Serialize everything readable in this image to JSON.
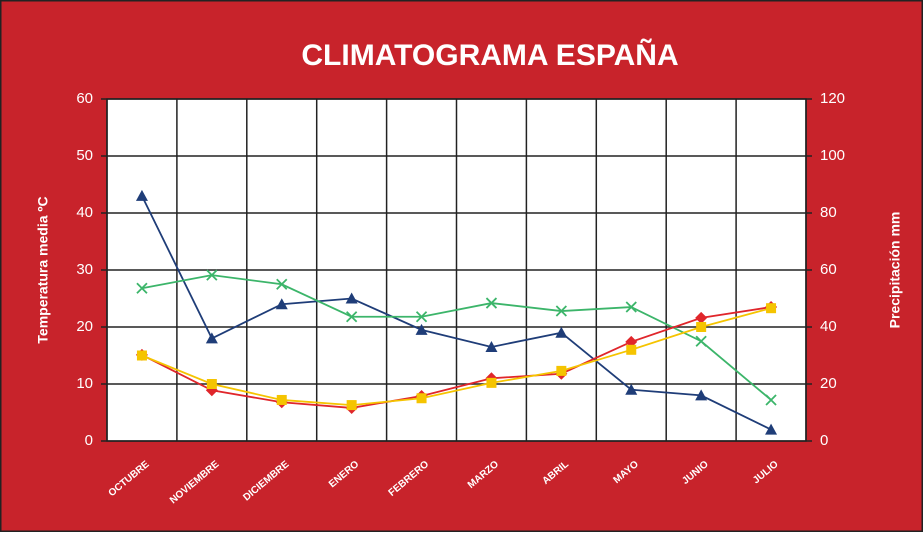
{
  "chart_data": {
    "type": "line",
    "title": "CLIMATOGRAMA ESPAÑA",
    "y_label": "Temperatura  media ºC",
    "y2_label": "Precipitación mm",
    "categories": [
      "OCTUBRE",
      "NOVIEMBRE",
      "DICIEMBRE",
      "ENERO",
      "FEBRERO",
      "MARZO",
      "ABRIL",
      "MAYO",
      "JUNIO",
      "JULIO"
    ],
    "ylim": [
      0,
      60
    ],
    "yticks": [
      0,
      10,
      20,
      30,
      40,
      50,
      60
    ],
    "y2lim": [
      0,
      120
    ],
    "y2ticks": [
      0,
      20,
      40,
      60,
      80,
      100,
      120
    ],
    "grid": true,
    "series": [
      {
        "color": "#1f3d78",
        "marker": "triangle",
        "axis": "y2",
        "values": [
          86,
          36,
          48,
          50,
          39,
          33,
          38,
          18,
          16,
          4
        ]
      },
      {
        "color": "#3cb56a",
        "marker": "x",
        "values": [
          26.8,
          29.1,
          27.5,
          21.8,
          21.8,
          24.2,
          22.8,
          23.5,
          17.5,
          7.2
        ]
      },
      {
        "color": "#e0262b",
        "marker": "diamond",
        "values": [
          15.1,
          8.9,
          6.8,
          5.8,
          7.9,
          11,
          11.8,
          17.4,
          21.6,
          23.5
        ]
      },
      {
        "color": "#f5c400",
        "marker": "square",
        "values": [
          15,
          10,
          7.2,
          6.3,
          7.5,
          10.2,
          12.3,
          16,
          20,
          23.3
        ]
      }
    ]
  }
}
